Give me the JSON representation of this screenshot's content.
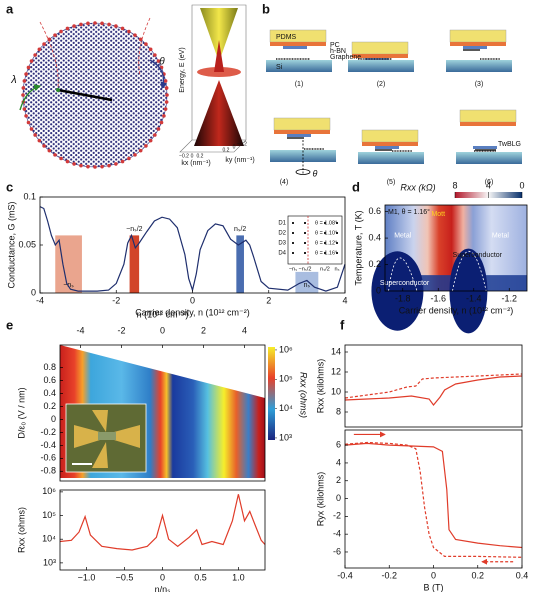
{
  "panel_labels": [
    "a",
    "b",
    "c",
    "d",
    "e",
    "f"
  ],
  "panel_a": {
    "lambda": "λ",
    "theta": "θ",
    "energy_axis": "Energy, E (eV)",
    "kx_axis": "kx (nm⁻¹)",
    "ky_axis": "ky (nm⁻¹)",
    "kx_ticks": [
      "−0.2",
      "0",
      "0.2"
    ],
    "ky_ticks": [
      "0.2",
      "0",
      "−0.2"
    ]
  },
  "panel_b": {
    "layers": [
      "PDMS",
      "PC",
      "h-BN",
      "Graphene",
      "Si"
    ],
    "steps": [
      "(1)",
      "(2)",
      "(3)",
      "(4)",
      "(5)",
      "(6)"
    ],
    "product": "TwBLG",
    "rotation": "θ"
  },
  "chart_data": [
    {
      "type": "line",
      "ylabel": "Conductance, G (mS)",
      "xlabel": "Carrier density, n (10¹² cm⁻²)",
      "xlim": [
        -4,
        4
      ],
      "ylim": [
        0,
        0.1
      ],
      "xticks": [
        -4,
        -2,
        0,
        2,
        4
      ],
      "yticks": [
        0,
        0.05,
        0.1
      ],
      "series": [
        {
          "color": "#1f2f6e",
          "x": [
            -4,
            -3.9,
            -3.8,
            -3.7,
            -3.6,
            -3.5,
            -3.4,
            -3.3,
            -3.2,
            -3,
            -2.5,
            -2.2,
            -2,
            -1.8,
            -1.7,
            -1.6,
            -1.5,
            -1.4,
            -1.2,
            -1,
            -0.8,
            -0.6,
            -0.4,
            -0.2,
            -0.1,
            0,
            0.1,
            0.2,
            0.4,
            0.6,
            0.8,
            1,
            1.2,
            1.4,
            1.5,
            1.6,
            1.8,
            2,
            2.5,
            2.8,
            3,
            3.2,
            3.5,
            3.8,
            4
          ],
          "values": [
            0.09,
            0.088,
            0.075,
            0.06,
            0.05,
            0.055,
            0.03,
            0.01,
            0.004,
            0.002,
            0.002,
            0.003,
            0.01,
            0.03,
            0.052,
            0.06,
            0.047,
            0.052,
            0.064,
            0.075,
            0.079,
            0.077,
            0.068,
            0.04,
            0.015,
            0.003,
            0.02,
            0.045,
            0.065,
            0.072,
            0.07,
            0.056,
            0.05,
            0.055,
            0.05,
            0.038,
            0.012,
            0.005,
            0.003,
            0.01,
            0.013,
            0.006,
            0.002,
            0.006,
            0.03
          ]
        }
      ],
      "regions": [
        {
          "label": "−nₛ",
          "x": [
            -3.6,
            -2.9
          ],
          "top": 0.06,
          "color": "#eaa58e"
        },
        {
          "label": "−nₛ/2",
          "x": [
            -1.65,
            -1.4
          ],
          "top": 0.06,
          "color": "#d2452a"
        },
        {
          "label": "nₛ/2",
          "x": [
            1.15,
            1.35
          ],
          "top": 0.06,
          "color": "#4a6db0"
        },
        {
          "label": "nₛ",
          "x": [
            2.7,
            3.3
          ],
          "top": 0.022,
          "color": "#a9bde0"
        }
      ],
      "inset": {
        "rows": [
          "D1",
          "D2",
          "D3",
          "D4"
        ],
        "angles": [
          "θ = 1.08°",
          "θ = 1.10°",
          "θ = 1.12°",
          "θ = 1.16°"
        ],
        "xlabels": [
          "−nₛ",
          "−nₛ/2",
          "nₛ/2",
          "nₛ"
        ]
      }
    },
    {
      "type": "heatmap",
      "xlabel": "Carrier density, n (10¹² cm⁻²)",
      "ylabel": "Temperature, T (K)",
      "xlim": [
        -1.9,
        -1.1
      ],
      "ylim": [
        0,
        0.65
      ],
      "xticks": [
        -1.8,
        -1.6,
        -1.4,
        -1.2
      ],
      "yticks": [
        0,
        0.2,
        0.4,
        0.6
      ],
      "colorbar": {
        "label": "Rxx (kΩ)",
        "clim": [
          8,
          0
        ],
        "ticks": [
          8,
          4,
          0
        ],
        "colors": [
          "#b2182b",
          "#f7f7f7",
          "#08306b"
        ]
      },
      "annotations": [
        "M1, θ = 1.16°",
        "Metal",
        "Mott",
        "Metal",
        "Superconductor",
        "Superconductor"
      ]
    },
    {
      "type": "heatmap",
      "xlabel": "n (10¹² cm⁻²)",
      "ylabel": "D/ε₀ (V / nm)",
      "xaxis_position": "top",
      "xlim": [
        -5,
        5
      ],
      "ylim": [
        -0.95,
        1.15
      ],
      "xticks": [
        -4,
        -2,
        0,
        2,
        4
      ],
      "yticks": [
        0.8,
        0.6,
        0.4,
        0.2,
        0,
        -0.2,
        -0.4,
        -0.6,
        -0.8
      ],
      "colorbar": {
        "label": "Rxx (ohms)",
        "log": true,
        "clim": [
          850,
          1260000
        ],
        "ticks": [
          {
            "value": 1000,
            "label": "10³"
          },
          {
            "value": 10000,
            "label": "10⁴"
          },
          {
            "value": 100000,
            "label": "10⁵"
          },
          {
            "value": 1000000,
            "label": "10⁶"
          }
        ],
        "colors": [
          "#1a237e",
          "#2f9fd8",
          "#e8412a",
          "#f6ee2a"
        ]
      }
    },
    {
      "type": "line",
      "ylabel": "Rxx (ohms)",
      "xlabel": "n/nₛ",
      "log_y": true,
      "xlim": [
        -1.35,
        1.35
      ],
      "ylim": [
        500,
        1200000
      ],
      "xticks": [
        {
          "value": -1,
          "label": "−1.0"
        },
        {
          "value": -0.5,
          "label": "−0.5"
        },
        0,
        0.5,
        {
          "value": 1,
          "label": "1.0"
        }
      ],
      "yticks": [
        {
          "value": 1000,
          "label": "10³"
        },
        {
          "value": 10000,
          "label": "10⁴"
        },
        {
          "value": 100000,
          "label": "10⁵"
        },
        {
          "value": 1000000,
          "label": "10⁶"
        }
      ],
      "series": [
        {
          "color": "#e03c2a",
          "x": [
            -1.35,
            -1.2,
            -1.1,
            -1.02,
            -0.95,
            -0.8,
            -0.6,
            -0.4,
            -0.2,
            -0.08,
            0,
            0.08,
            0.2,
            0.35,
            0.45,
            0.52,
            0.65,
            0.8,
            0.92,
            1,
            1.08,
            1.15,
            1.22,
            1.3,
            1.35
          ],
          "values": [
            8000,
            9000,
            20000,
            90000,
            15000,
            5000,
            4000,
            3500,
            5000,
            12000,
            100000,
            10000,
            5000,
            12000,
            25000,
            6000,
            8000,
            6000,
            60000,
            800000,
            60000,
            150000,
            40000,
            9000,
            6000
          ]
        }
      ]
    },
    {
      "type": "line",
      "ylabel": "Rxx (kilohms)",
      "xlim": [
        -0.4,
        0.4
      ],
      "ylim": [
        6.5,
        14.7
      ],
      "yticks": [
        8,
        10,
        12,
        14
      ],
      "series": [
        {
          "color": "#e03c2a",
          "style": "solid",
          "x": [
            -0.4,
            -0.3,
            -0.2,
            -0.1,
            -0.02,
            0,
            0.03,
            0.05,
            0.1,
            0.15,
            0.2,
            0.3,
            0.4
          ],
          "values": [
            9.2,
            9.3,
            9.4,
            9.6,
            9.3,
            8.7,
            9.5,
            10.2,
            10.8,
            11,
            11.2,
            11.5,
            11.6
          ]
        },
        {
          "color": "#e03c2a",
          "style": "dashed",
          "x": [
            -0.4,
            -0.3,
            -0.2,
            -0.12,
            -0.08,
            -0.05,
            0,
            0.1,
            0.2,
            0.3,
            0.4
          ],
          "values": [
            9.4,
            9.7,
            10,
            10.5,
            10.6,
            11.3,
            11.4,
            11.5,
            11.6,
            11.7,
            11.8
          ]
        }
      ]
    },
    {
      "type": "line",
      "ylabel": "Ryx (kilohms)",
      "xlabel": "B (T)",
      "xlim": [
        -0.4,
        0.4
      ],
      "ylim": [
        -7.8,
        7.7
      ],
      "xticks": [
        -0.4,
        -0.2,
        0,
        0.2,
        0.4
      ],
      "yticks": [
        -6,
        -4,
        -2,
        0,
        2,
        4,
        6
      ],
      "series": [
        {
          "color": "#e03c2a",
          "style": "solid",
          "x": [
            -0.4,
            -0.3,
            -0.2,
            -0.1,
            0,
            0.04,
            0.06,
            0.07,
            0.1,
            0.2,
            0.3,
            0.4
          ],
          "values": [
            6,
            6.2,
            6,
            5.9,
            5.8,
            5.3,
            1,
            -3.5,
            -4.6,
            -5,
            -5.3,
            -5.5
          ]
        },
        {
          "color": "#e03c2a",
          "style": "dashed",
          "x": [
            -0.4,
            -0.3,
            -0.2,
            -0.12,
            -0.08,
            -0.06,
            -0.04,
            -0.02,
            0,
            0.05,
            0.2,
            0.4
          ],
          "values": [
            6.1,
            6.3,
            6.2,
            6,
            5.6,
            3,
            -1,
            -4,
            -5.5,
            -6.5,
            -6.5,
            -6.6
          ]
        }
      ]
    }
  ]
}
